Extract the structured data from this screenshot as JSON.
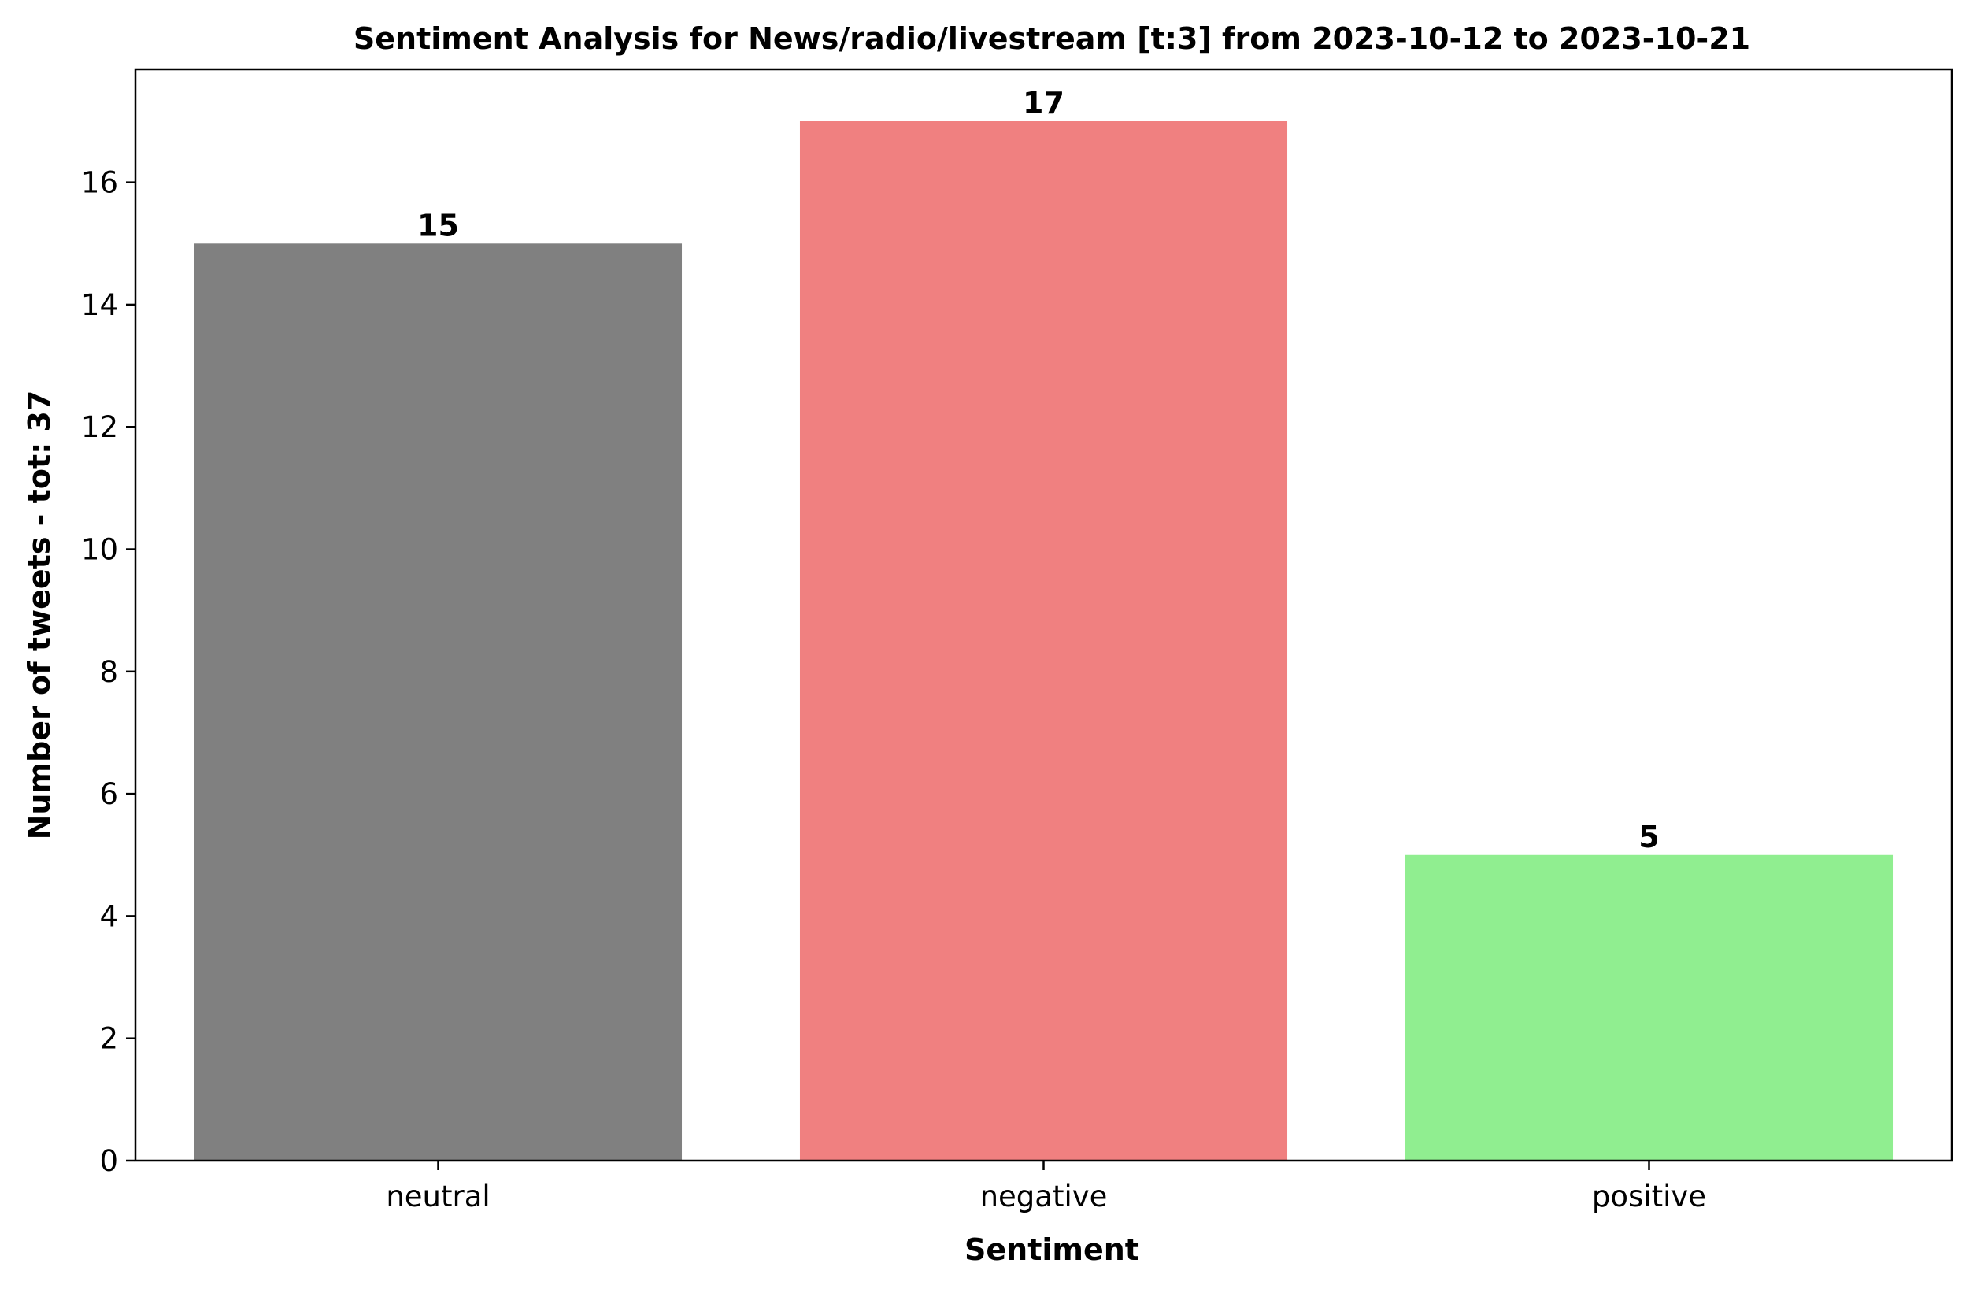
{
  "chart_data": {
    "type": "bar",
    "title": "Sentiment Analysis for News/radio/livestream [t:3] from 2023-10-12 to 2023-10-21",
    "xlabel": "Sentiment",
    "ylabel": "Number of tweets - tot: 37",
    "categories": [
      "neutral",
      "negative",
      "positive"
    ],
    "values": [
      15,
      17,
      5
    ],
    "data_labels": [
      "15",
      "17",
      "5"
    ],
    "colors": [
      "#808080",
      "#f08080",
      "#90ee90"
    ],
    "ylim": [
      0,
      17.85
    ],
    "yticks": [
      0,
      2,
      4,
      6,
      8,
      10,
      12,
      14,
      16
    ],
    "grid": false,
    "legend": "none"
  }
}
